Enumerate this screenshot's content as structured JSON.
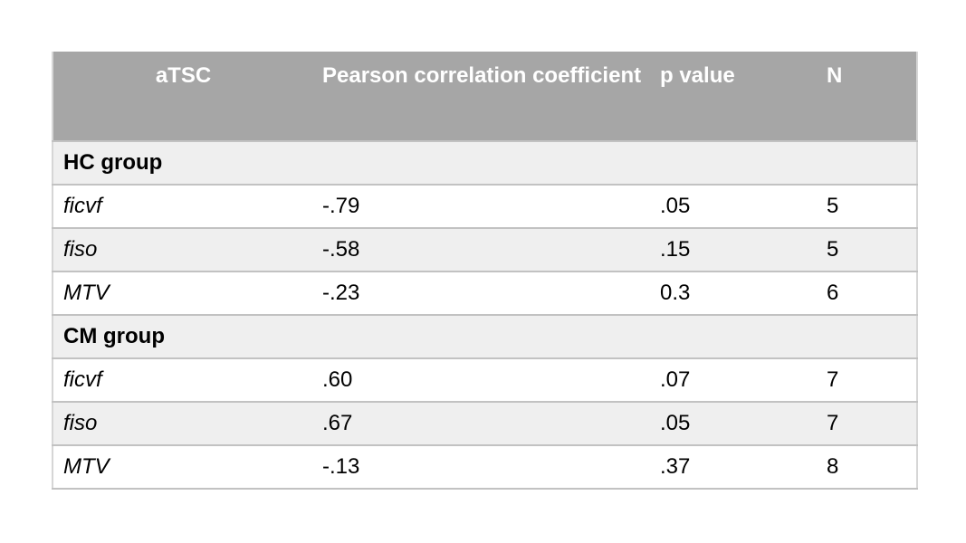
{
  "colors": {
    "header_bg": "#a6a6a6",
    "header_text": "#ffffff",
    "row_stripe": "#efefef",
    "row_plain": "#ffffff",
    "row_border": "#c2c2c2",
    "text": "#000000"
  },
  "chart_data": {
    "type": "table",
    "columns": [
      "aTSC",
      "Pearson correlation coefficient",
      "p value",
      "N"
    ],
    "sections": [
      {
        "group": "HC group",
        "rows": [
          [
            "ficvf",
            "-.79",
            ".05",
            "5"
          ],
          [
            "fiso",
            "-.58",
            ".15",
            "5"
          ],
          [
            "MTV",
            "-.23",
            "0.3",
            "6"
          ]
        ]
      },
      {
        "group": "CM group",
        "rows": [
          [
            "ficvf",
            ".60",
            ".07",
            "7"
          ],
          [
            "fiso",
            ".67",
            ".05",
            "7"
          ],
          [
            "MTV",
            "-.13",
            ".37",
            "8"
          ]
        ]
      }
    ]
  }
}
